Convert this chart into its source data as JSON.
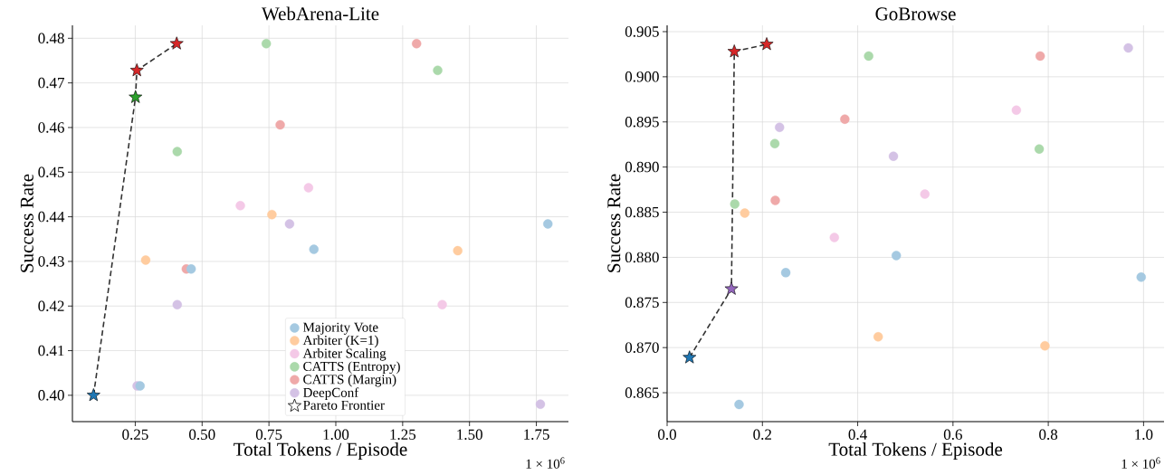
{
  "chart_data": [
    {
      "type": "scatter",
      "title": "WebArena-Lite",
      "xlabel": "Total Tokens / Episode",
      "ylabel": "Success Rate",
      "annotations": [
        "1 × 10$^{6}$"
      ],
      "xlim": [
        0.015,
        1.87
      ],
      "ylim": [
        0.3941,
        0.4829
      ],
      "xticks": [
        {
          "value": 0.25,
          "label": "0.25"
        },
        {
          "value": 0.5,
          "label": "0.50"
        },
        {
          "value": 0.75,
          "label": "0.75"
        },
        {
          "value": 1.0,
          "label": "1.00"
        },
        {
          "value": 1.25,
          "label": "1.25"
        },
        {
          "value": 1.5,
          "label": "1.50"
        },
        {
          "value": 1.75,
          "label": "1.75"
        }
      ],
      "yticks": [
        {
          "value": 0.4,
          "label": "0.40"
        },
        {
          "value": 0.41,
          "label": "0.41"
        },
        {
          "value": 0.42,
          "label": "0.42"
        },
        {
          "value": 0.43,
          "label": "0.43"
        },
        {
          "value": 0.44,
          "label": "0.44"
        },
        {
          "value": 0.45,
          "label": "0.45"
        },
        {
          "value": 0.46,
          "label": "0.46"
        },
        {
          "value": 0.47,
          "label": "0.47"
        },
        {
          "value": 0.48,
          "label": "0.48"
        }
      ],
      "grid": true,
      "legend": "bottom",
      "marker": "circle",
      "series": [
        {
          "name": "Majority Vote",
          "color": "#a5c9e1",
          "x": [
            1.793,
            0.459,
            0.268,
            0.918
          ],
          "values": [
            0.4384,
            0.4283,
            0.4021,
            0.4327
          ]
        },
        {
          "name": "Arbiter (K=1)",
          "color": "#ffcc9f",
          "x": [
            0.761,
            0.289,
            1.456
          ],
          "values": [
            0.4405,
            0.4303,
            0.4324
          ]
        },
        {
          "name": "Arbiter Scaling",
          "color": "#f4c9e7",
          "x": [
            0.898,
            0.643,
            1.398
          ],
          "values": [
            0.4465,
            0.4425,
            0.4203
          ]
        },
        {
          "name": "CATTS (Entropy)",
          "color": "#abd9ab",
          "x": [
            0.74,
            1.381,
            0.407
          ],
          "values": [
            0.4788,
            0.4728,
            0.4546
          ]
        },
        {
          "name": "CATTS (Margin)",
          "color": "#efa9a9",
          "x": [
            1.302,
            0.792,
            0.441
          ],
          "values": [
            0.4788,
            0.4606,
            0.4283
          ]
        },
        {
          "name": "DeepConf",
          "color": "#d4c2e5",
          "x": [
            0.827,
            0.407,
            0.257,
            1.765
          ],
          "values": [
            0.4384,
            0.4203,
            0.4021,
            0.398
          ]
        },
        {
          "name": "Pareto Frontier",
          "type": "line",
          "marker": "star",
          "line_style": "dashed",
          "color": "#333333",
          "colors": [
            "#1f77b4",
            "#2ca02c",
            "#d62728",
            "#d62728"
          ],
          "x": [
            0.094,
            0.251,
            0.256,
            0.405
          ],
          "values": [
            0.4,
            0.4668,
            0.4728,
            0.4788
          ]
        }
      ]
    },
    {
      "type": "scatter",
      "title": "GoBrowse",
      "xlabel": "Total Tokens / Episode",
      "ylabel": "Success Rate",
      "annotations": [
        "1 × 10$^{6}$"
      ],
      "xlim": [
        0.0,
        1.043
      ],
      "ylim": [
        0.8618,
        0.9057
      ],
      "xticks": [
        {
          "value": 0.0,
          "label": "0.0"
        },
        {
          "value": 0.2,
          "label": "0.2"
        },
        {
          "value": 0.4,
          "label": "0.4"
        },
        {
          "value": 0.6,
          "label": "0.6"
        },
        {
          "value": 0.8,
          "label": "0.8"
        },
        {
          "value": 1.0,
          "label": "1.0"
        }
      ],
      "yticks": [
        0.865,
        {
          "value": 0.87,
          "label": "0.870"
        },
        0.875,
        {
          "value": 0.88,
          "label": "0.880"
        },
        0.885,
        {
          "value": 0.89,
          "label": "0.890"
        },
        0.895,
        {
          "value": 0.9,
          "label": "0.900"
        },
        0.905
      ],
      "grid": true,
      "marker": "circle",
      "series": [
        {
          "color": "#a5c9e1",
          "x": [
            0.481,
            0.249,
            0.995,
            0.151
          ],
          "values": [
            0.8802,
            0.8783,
            0.8778,
            0.8637
          ]
        },
        {
          "color": "#ffcc9f",
          "x": [
            0.163,
            0.443,
            0.793
          ],
          "values": [
            0.8849,
            0.8712,
            0.8702
          ]
        },
        {
          "color": "#f4c9e7",
          "x": [
            0.733,
            0.541,
            0.351
          ],
          "values": [
            0.8963,
            0.887,
            0.8822
          ]
        },
        {
          "color": "#abd9ab",
          "x": [
            0.423,
            0.226,
            0.781,
            0.142
          ],
          "values": [
            0.9023,
            0.8926,
            0.892,
            0.8859
          ]
        },
        {
          "color": "#efa9a9",
          "x": [
            0.783,
            0.373,
            0.227
          ],
          "values": [
            0.9023,
            0.8953,
            0.8863
          ]
        },
        {
          "color": "#d4c2e5",
          "x": [
            0.968,
            0.236,
            0.475
          ],
          "values": [
            0.9032,
            0.8944,
            0.8912
          ]
        },
        {
          "type": "line",
          "marker": "star",
          "line_style": "dashed",
          "color": "#333333",
          "colors": [
            "#1f77b4",
            "#9467bd",
            "#d62728",
            "#d62728"
          ],
          "x": [
            0.047,
            0.135,
            0.141,
            0.209
          ],
          "values": [
            0.8689,
            0.8765,
            0.9028,
            0.9036
          ]
        }
      ]
    }
  ]
}
